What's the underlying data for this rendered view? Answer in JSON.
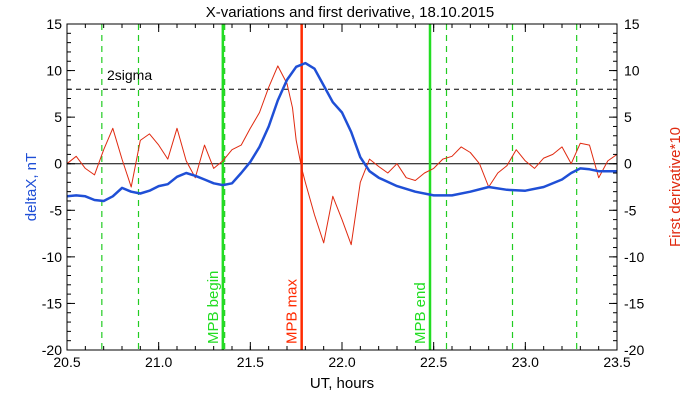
{
  "chart_data": {
    "type": "line",
    "title": "X-variations and first derivative, 18.10.2015",
    "xlabel": "UT, hours",
    "ylabel_left": "deltaX, nT",
    "ylabel_right": "First derivative*10",
    "xlim": [
      20.5,
      23.5
    ],
    "ylim": [
      -20,
      15
    ],
    "xticks": [
      "20.5",
      "21.0",
      "21.5",
      "22.0",
      "22.5",
      "23.0",
      "23.5"
    ],
    "yticks": [
      "15",
      "10",
      "5",
      "0",
      "-5",
      "-10",
      "-15",
      "-20"
    ],
    "colors": {
      "deltaX": "#1f4fd6",
      "derivative": "#e02a10",
      "mpb_begin_end": "#22dd22",
      "mpb_max": "#ff2a00",
      "dashed_green": "#22cc22",
      "threshold": "#000000",
      "ylabel_left": "#1f4fd6",
      "ylabel_right": "#e02a10"
    },
    "threshold": {
      "label": "2sigma",
      "value": 8
    },
    "zero_line": 0,
    "dashed_verticals": [
      20.69,
      20.89,
      21.36,
      22.57,
      22.93,
      23.28
    ],
    "markers": [
      {
        "x": 21.35,
        "label": "MPB begin",
        "role": "begin"
      },
      {
        "x": 21.78,
        "label": "MPB max",
        "role": "max"
      },
      {
        "x": 22.48,
        "label": "MPB end",
        "role": "end"
      }
    ],
    "series": [
      {
        "x": [
          20.5,
          20.55,
          20.6,
          20.65,
          20.7,
          20.75,
          20.8,
          20.85,
          20.9,
          20.95,
          21.0,
          21.05,
          21.1,
          21.15,
          21.2,
          21.25,
          21.3,
          21.35,
          21.4,
          21.45,
          21.5,
          21.55,
          21.6,
          21.65,
          21.7,
          21.75,
          21.8,
          21.85,
          21.9,
          21.95,
          22.0,
          22.05,
          22.1,
          22.15,
          22.2,
          22.3,
          22.4,
          22.5,
          22.6,
          22.7,
          22.8,
          22.9,
          23.0,
          23.1,
          23.2,
          23.25,
          23.3,
          23.35,
          23.4,
          23.5
        ],
        "y": [
          -3.5,
          -3.4,
          -3.5,
          -3.9,
          -4.0,
          -3.5,
          -2.6,
          -3.0,
          -3.2,
          -2.9,
          -2.4,
          -2.2,
          -1.4,
          -1.0,
          -1.3,
          -1.7,
          -2.1,
          -2.3,
          -2.1,
          -1.0,
          0.2,
          1.8,
          4.0,
          6.8,
          9.0,
          10.4,
          10.8,
          10.2,
          8.4,
          6.6,
          5.5,
          3.4,
          0.7,
          -0.8,
          -1.5,
          -2.4,
          -3.0,
          -3.4,
          -3.4,
          -3.0,
          -2.5,
          -2.8,
          -2.9,
          -2.5,
          -1.7,
          -1.0,
          -0.5,
          -0.6,
          -0.8,
          -0.8
        ]
      },
      {
        "x": [
          20.5,
          20.55,
          20.6,
          20.65,
          20.7,
          20.75,
          20.8,
          20.85,
          20.9,
          20.95,
          21.0,
          21.05,
          21.1,
          21.15,
          21.2,
          21.25,
          21.3,
          21.35,
          21.4,
          21.45,
          21.5,
          21.55,
          21.6,
          21.65,
          21.7,
          21.73,
          21.75,
          21.78,
          21.8,
          21.85,
          21.9,
          21.95,
          22.0,
          22.05,
          22.1,
          22.15,
          22.2,
          22.25,
          22.3,
          22.35,
          22.4,
          22.45,
          22.5,
          22.55,
          22.6,
          22.65,
          22.7,
          22.75,
          22.8,
          22.85,
          22.9,
          22.95,
          23.0,
          23.05,
          23.1,
          23.15,
          23.2,
          23.25,
          23.3,
          23.35,
          23.4,
          23.45,
          23.5
        ],
        "y": [
          0.0,
          0.8,
          -0.5,
          -1.2,
          1.5,
          3.8,
          0.5,
          -2.5,
          2.5,
          3.2,
          2.0,
          0.5,
          3.8,
          0.3,
          -1.5,
          2.0,
          -0.5,
          0.3,
          1.5,
          2.0,
          3.8,
          5.5,
          8.2,
          10.5,
          8.6,
          6.0,
          2.5,
          -0.5,
          -2.0,
          -5.5,
          -8.5,
          -3.5,
          -6.0,
          -8.7,
          -2.0,
          0.5,
          -0.3,
          -1.0,
          0.0,
          -1.5,
          -1.8,
          -1.0,
          -0.5,
          0.5,
          0.8,
          1.8,
          1.2,
          0.0,
          -2.5,
          -1.0,
          -0.2,
          1.5,
          0.3,
          -0.5,
          0.6,
          1.0,
          1.8,
          0.0,
          2.2,
          2.0,
          -1.5,
          0.3,
          1.0
        ]
      }
    ]
  }
}
